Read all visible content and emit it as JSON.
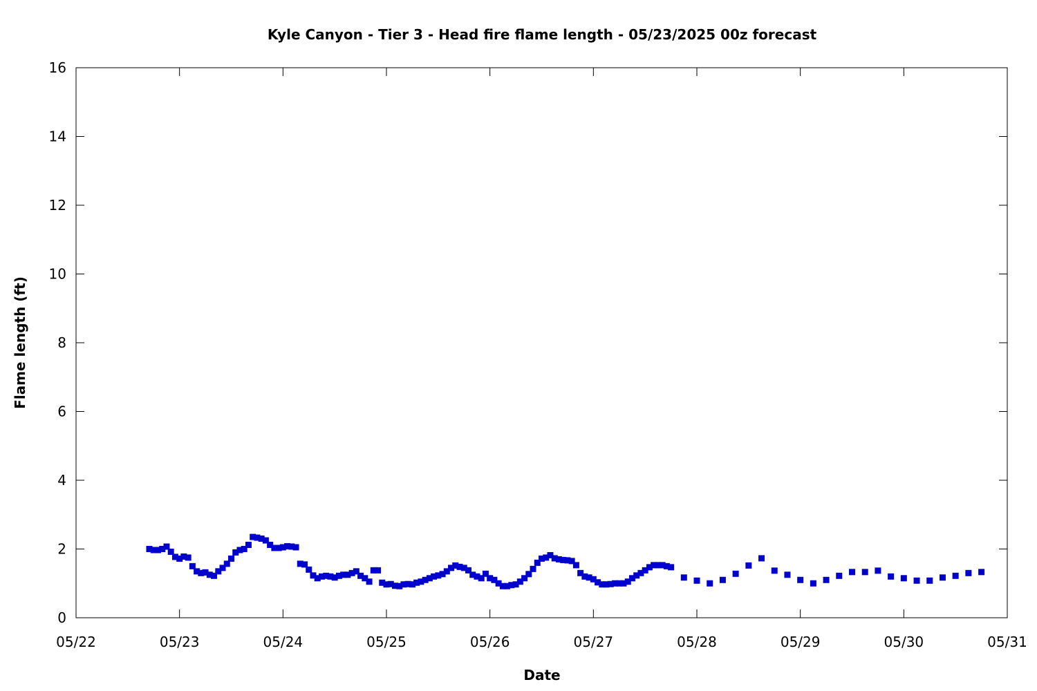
{
  "chart_data": {
    "type": "scatter",
    "title": "Kyle Canyon - Tier 3 - Head fire flame length - 05/23/2025 00z forecast",
    "xlabel": "Date",
    "ylabel": "Flame length (ft)",
    "x_ticks": [
      "05/22",
      "05/23",
      "05/24",
      "05/25",
      "05/26",
      "05/27",
      "05/28",
      "05/29",
      "05/30",
      "05/31"
    ],
    "y_ticks": [
      "0",
      "2",
      "4",
      "6",
      "8",
      "10",
      "12",
      "14",
      "16"
    ],
    "xlim": [
      "05/22 00:00",
      "05/31 00:00"
    ],
    "ylim": [
      0,
      16
    ],
    "grid": false,
    "marker_color": "#0000cc",
    "marker": "square",
    "series": [
      {
        "points": [
          [
            "05/22 17:00",
            2.0
          ],
          [
            "05/22 18:00",
            1.97
          ],
          [
            "05/22 19:00",
            1.97
          ],
          [
            "05/22 20:00",
            2.0
          ],
          [
            "05/22 21:00",
            2.07
          ],
          [
            "05/22 22:00",
            1.92
          ],
          [
            "05/22 23:00",
            1.77
          ],
          [
            "05/23 00:00",
            1.72
          ],
          [
            "05/23 01:00",
            1.78
          ],
          [
            "05/23 02:00",
            1.75
          ],
          [
            "05/23 03:00",
            1.5
          ],
          [
            "05/23 04:00",
            1.35
          ],
          [
            "05/23 05:00",
            1.3
          ],
          [
            "05/23 06:00",
            1.32
          ],
          [
            "05/23 07:00",
            1.25
          ],
          [
            "05/23 08:00",
            1.22
          ],
          [
            "05/23 09:00",
            1.35
          ],
          [
            "05/23 10:00",
            1.45
          ],
          [
            "05/23 11:00",
            1.57
          ],
          [
            "05/23 12:00",
            1.72
          ],
          [
            "05/23 13:00",
            1.9
          ],
          [
            "05/23 14:00",
            1.97
          ],
          [
            "05/23 15:00",
            2.0
          ],
          [
            "05/23 16:00",
            2.12
          ],
          [
            "05/23 17:00",
            2.35
          ],
          [
            "05/23 18:00",
            2.33
          ],
          [
            "05/23 19:00",
            2.3
          ],
          [
            "05/23 20:00",
            2.25
          ],
          [
            "05/23 21:00",
            2.12
          ],
          [
            "05/23 22:00",
            2.03
          ],
          [
            "05/23 23:00",
            2.03
          ],
          [
            "05/24 00:00",
            2.05
          ],
          [
            "05/24 01:00",
            2.08
          ],
          [
            "05/24 02:00",
            2.07
          ],
          [
            "05/24 03:00",
            2.05
          ],
          [
            "05/24 04:00",
            1.57
          ],
          [
            "05/24 05:00",
            1.55
          ],
          [
            "05/24 06:00",
            1.4
          ],
          [
            "05/24 07:00",
            1.23
          ],
          [
            "05/24 08:00",
            1.15
          ],
          [
            "05/24 09:00",
            1.2
          ],
          [
            "05/24 10:00",
            1.22
          ],
          [
            "05/24 11:00",
            1.2
          ],
          [
            "05/24 12:00",
            1.17
          ],
          [
            "05/24 13:00",
            1.22
          ],
          [
            "05/24 14:00",
            1.25
          ],
          [
            "05/24 15:00",
            1.25
          ],
          [
            "05/24 16:00",
            1.3
          ],
          [
            "05/24 17:00",
            1.35
          ],
          [
            "05/24 18:00",
            1.22
          ],
          [
            "05/24 19:00",
            1.15
          ],
          [
            "05/24 20:00",
            1.05
          ],
          [
            "05/24 21:00",
            1.38
          ],
          [
            "05/24 22:00",
            1.38
          ],
          [
            "05/24 23:00",
            1.02
          ],
          [
            "05/25 00:00",
            0.97
          ],
          [
            "05/25 01:00",
            0.98
          ],
          [
            "05/25 02:00",
            0.93
          ],
          [
            "05/25 03:00",
            0.92
          ],
          [
            "05/25 04:00",
            0.97
          ],
          [
            "05/25 05:00",
            0.98
          ],
          [
            "05/25 06:00",
            0.97
          ],
          [
            "05/25 07:00",
            1.02
          ],
          [
            "05/25 08:00",
            1.05
          ],
          [
            "05/25 09:00",
            1.1
          ],
          [
            "05/25 10:00",
            1.15
          ],
          [
            "05/25 11:00",
            1.2
          ],
          [
            "05/25 12:00",
            1.23
          ],
          [
            "05/25 13:00",
            1.27
          ],
          [
            "05/25 14:00",
            1.35
          ],
          [
            "05/25 15:00",
            1.45
          ],
          [
            "05/25 16:00",
            1.52
          ],
          [
            "05/25 17:00",
            1.48
          ],
          [
            "05/25 18:00",
            1.45
          ],
          [
            "05/25 19:00",
            1.38
          ],
          [
            "05/25 20:00",
            1.25
          ],
          [
            "05/25 21:00",
            1.2
          ],
          [
            "05/25 22:00",
            1.15
          ],
          [
            "05/25 23:00",
            1.28
          ],
          [
            "05/26 00:00",
            1.15
          ],
          [
            "05/26 01:00",
            1.1
          ],
          [
            "05/26 02:00",
            1.0
          ],
          [
            "05/26 03:00",
            0.92
          ],
          [
            "05/26 04:00",
            0.92
          ],
          [
            "05/26 05:00",
            0.95
          ],
          [
            "05/26 06:00",
            0.97
          ],
          [
            "05/26 07:00",
            1.05
          ],
          [
            "05/26 08:00",
            1.15
          ],
          [
            "05/26 09:00",
            1.27
          ],
          [
            "05/26 10:00",
            1.42
          ],
          [
            "05/26 11:00",
            1.6
          ],
          [
            "05/26 12:00",
            1.72
          ],
          [
            "05/26 13:00",
            1.75
          ],
          [
            "05/26 14:00",
            1.82
          ],
          [
            "05/26 15:00",
            1.73
          ],
          [
            "05/26 16:00",
            1.7
          ],
          [
            "05/26 17:00",
            1.68
          ],
          [
            "05/26 18:00",
            1.67
          ],
          [
            "05/26 19:00",
            1.65
          ],
          [
            "05/26 20:00",
            1.53
          ],
          [
            "05/26 21:00",
            1.3
          ],
          [
            "05/26 22:00",
            1.2
          ],
          [
            "05/26 23:00",
            1.17
          ],
          [
            "05/27 00:00",
            1.12
          ],
          [
            "05/27 01:00",
            1.03
          ],
          [
            "05/27 02:00",
            0.97
          ],
          [
            "05/27 03:00",
            0.97
          ],
          [
            "05/27 04:00",
            0.98
          ],
          [
            "05/27 05:00",
            1.0
          ],
          [
            "05/27 06:00",
            1.0
          ],
          [
            "05/27 07:00",
            1.0
          ],
          [
            "05/27 08:00",
            1.05
          ],
          [
            "05/27 09:00",
            1.15
          ],
          [
            "05/27 10:00",
            1.23
          ],
          [
            "05/27 11:00",
            1.3
          ],
          [
            "05/27 12:00",
            1.38
          ],
          [
            "05/27 13:00",
            1.47
          ],
          [
            "05/27 14:00",
            1.53
          ],
          [
            "05/27 15:00",
            1.53
          ],
          [
            "05/27 16:00",
            1.53
          ],
          [
            "05/27 17:00",
            1.5
          ],
          [
            "05/27 18:00",
            1.47
          ],
          [
            "05/27 21:00",
            1.17
          ],
          [
            "05/28 00:00",
            1.08
          ],
          [
            "05/28 03:00",
            1.0
          ],
          [
            "05/28 06:00",
            1.1
          ],
          [
            "05/28 09:00",
            1.28
          ],
          [
            "05/28 12:00",
            1.52
          ],
          [
            "05/28 15:00",
            1.73
          ],
          [
            "05/28 18:00",
            1.37
          ],
          [
            "05/28 21:00",
            1.25
          ],
          [
            "05/29 00:00",
            1.1
          ],
          [
            "05/29 03:00",
            1.0
          ],
          [
            "05/29 06:00",
            1.1
          ],
          [
            "05/29 09:00",
            1.22
          ],
          [
            "05/29 12:00",
            1.33
          ],
          [
            "05/29 15:00",
            1.33
          ],
          [
            "05/29 18:00",
            1.37
          ],
          [
            "05/29 21:00",
            1.2
          ],
          [
            "05/30 00:00",
            1.15
          ],
          [
            "05/30 03:00",
            1.08
          ],
          [
            "05/30 06:00",
            1.08
          ],
          [
            "05/30 09:00",
            1.17
          ],
          [
            "05/30 12:00",
            1.22
          ],
          [
            "05/30 15:00",
            1.3
          ],
          [
            "05/30 18:00",
            1.33
          ]
        ]
      }
    ]
  }
}
